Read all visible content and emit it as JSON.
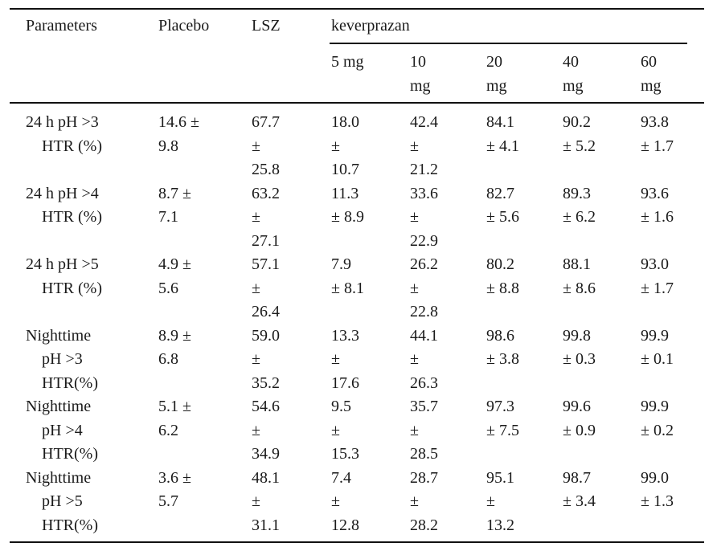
{
  "table": {
    "headers": {
      "parameters": "Parameters",
      "placebo": "Placebo",
      "lsz": "LSZ",
      "group": "keverprazan",
      "doses": [
        "5 mg",
        "10\nmg",
        "20\nmg",
        "40\nmg",
        "60\nmg"
      ]
    },
    "rows": [
      {
        "label": "24 h pH >3\nHTR (%)",
        "values": [
          "14.6 ±\n9.8",
          "67.7\n±\n25.8",
          "18.0\n±\n10.7",
          "42.4\n±\n21.2",
          "84.1\n± 4.1",
          "90.2\n± 5.2",
          "93.8\n± 1.7"
        ]
      },
      {
        "label": "24 h pH >4\nHTR (%)",
        "values": [
          "8.7 ±\n7.1",
          "63.2\n±\n27.1",
          "11.3\n± 8.9",
          "33.6\n±\n22.9",
          "82.7\n± 5.6",
          "89.3\n± 6.2",
          "93.6\n± 1.6"
        ]
      },
      {
        "label": "24 h pH >5\nHTR (%)",
        "values": [
          "4.9 ±\n5.6",
          "57.1\n±\n26.4",
          "7.9\n± 8.1",
          "26.2\n±\n22.8",
          "80.2\n± 8.8",
          "88.1\n± 8.6",
          "93.0\n± 1.7"
        ]
      },
      {
        "label": "Nighttime\npH >3\nHTR(%)",
        "values": [
          "8.9 ±\n6.8",
          "59.0\n±\n35.2",
          "13.3\n±\n17.6",
          "44.1\n±\n26.3",
          "98.6\n± 3.8",
          "99.8\n± 0.3",
          "99.9\n± 0.1"
        ]
      },
      {
        "label": "Nighttime\npH >4\nHTR(%)",
        "values": [
          "5.1 ±\n6.2",
          "54.6\n±\n34.9",
          "9.5\n±\n15.3",
          "35.7\n±\n28.5",
          "97.3\n± 7.5",
          "99.6\n± 0.9",
          "99.9\n± 0.2"
        ]
      },
      {
        "label": "Nighttime\npH >5\nHTR(%)",
        "values": [
          "3.6 ±\n5.7",
          "48.1\n±\n31.1",
          "7.4\n±\n12.8",
          "28.7\n±\n28.2",
          "95.1\n±\n13.2",
          "98.7\n± 3.4",
          "99.0\n± 1.3"
        ]
      }
    ]
  }
}
